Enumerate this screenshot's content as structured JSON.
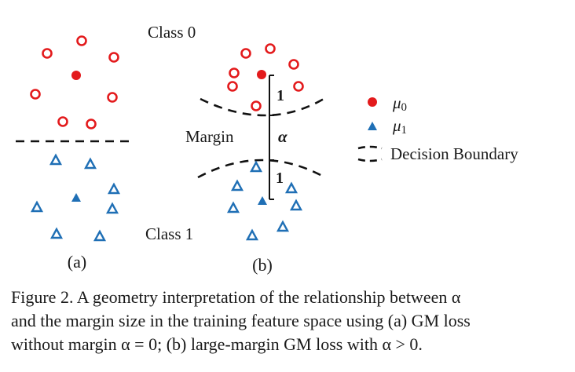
{
  "labels": {
    "class0": "Class 0",
    "class1": "Class 1",
    "margin": "Margin",
    "alpha": "α",
    "one_top": "1",
    "one_bottom": "1",
    "panel_a": "(a)",
    "panel_b": "(b)"
  },
  "legend": {
    "mu0": "μ0",
    "mu1": "μ1",
    "boundary": "Decision Boundary"
  },
  "colors": {
    "class0": "#e31a1c",
    "class1": "#1f6fb5",
    "line": "#111111"
  },
  "caption": {
    "line1": "Figure 2. A geometry interpretation of the relationship between α",
    "line2": "and the margin size in the training feature space using (a) GM loss",
    "line3": "without margin α = 0; (b) large-margin GM loss with α > 0."
  }
}
